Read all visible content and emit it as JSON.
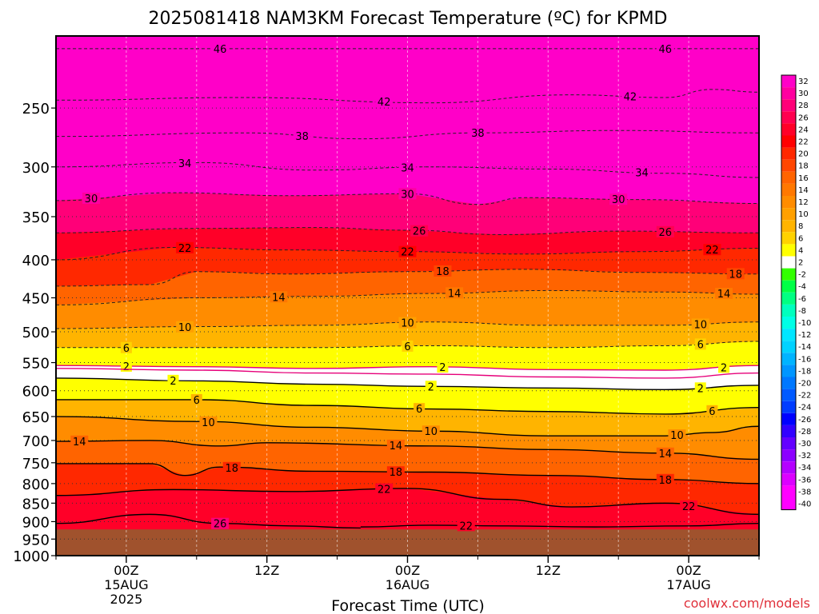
{
  "chart_data": {
    "type": "heatmap",
    "title": "2025081418 NAM3KM Forecast Temperature (ºC) for KPMD",
    "xlabel": "Forecast Time (UTC)",
    "ylabel": "",
    "credit": "coolwx.com/models",
    "y_scale": "log",
    "y_reversed": true,
    "ylim": [
      1000,
      200
    ],
    "y_ticks": [
      250,
      300,
      350,
      400,
      450,
      500,
      550,
      600,
      650,
      700,
      750,
      800,
      850,
      900,
      950,
      1000
    ],
    "x_ticks": [
      {
        "hour": 0,
        "lines": [
          "00Z",
          "15AUG",
          "2025"
        ]
      },
      {
        "hour": 12,
        "lines": [
          "12Z"
        ]
      },
      {
        "hour": 24,
        "lines": [
          "00Z",
          "16AUG"
        ]
      },
      {
        "hour": 36,
        "lines": [
          "12Z"
        ]
      },
      {
        "hour": 48,
        "lines": [
          "00Z",
          "17AUG"
        ]
      }
    ],
    "xlim": [
      -6,
      54
    ],
    "grid": true,
    "surface_pressure": 922,
    "surface_color": "#a0522d",
    "colorbar": {
      "levels": [
        32,
        30,
        28,
        26,
        24,
        22,
        20,
        18,
        16,
        14,
        12,
        10,
        8,
        6,
        4,
        2,
        -2,
        -4,
        -6,
        -8,
        -10,
        -12,
        -14,
        -16,
        -18,
        -20,
        -22,
        -24,
        -26,
        -28,
        -30,
        -32,
        -34,
        -36,
        -38,
        -40
      ],
      "colors": [
        "#ff00c8",
        "#ff00a0",
        "#ff0078",
        "#ff0050",
        "#ff0028",
        "#ff0000",
        "#ff2800",
        "#ff4600",
        "#ff6400",
        "#ff7800",
        "#ff8c00",
        "#ffa000",
        "#ffb400",
        "#ffd200",
        "#ffff00",
        "#ffffff",
        "#32ff00",
        "#00ff46",
        "#00ff82",
        "#00ffbe",
        "#00ffe6",
        "#00e6ff",
        "#00d2ff",
        "#00b4ff",
        "#0096ff",
        "#0078ff",
        "#005aff",
        "#003cff",
        "#0000ff",
        "#3200ff",
        "#6400ff",
        "#8c00ff",
        "#b400ff",
        "#dc00ff",
        "#ff00ff",
        "#ff00ff"
      ]
    },
    "contours": [
      {
        "value": 46,
        "style": "dashed",
        "color": "#222222",
        "label_hours": [
          8,
          46
        ],
        "p": [
          [
            -6,
            208
          ],
          [
            10,
            208
          ],
          [
            30,
            208
          ],
          [
            54,
            208
          ]
        ]
      },
      {
        "value": 42,
        "style": "dashed",
        "color": "#222222",
        "label_hours": [
          22,
          43
        ],
        "p": [
          [
            -6,
            244
          ],
          [
            10,
            242
          ],
          [
            26,
            246
          ],
          [
            38,
            240
          ],
          [
            46,
            242
          ],
          [
            50,
            236
          ],
          [
            54,
            238
          ]
        ]
      },
      {
        "value": 38,
        "style": "dashed",
        "color": "#222222",
        "label_hours": [
          15,
          30
        ],
        "p": [
          [
            -6,
            273
          ],
          [
            10,
            270
          ],
          [
            20,
            275
          ],
          [
            30,
            270
          ],
          [
            42,
            268
          ],
          [
            54,
            270
          ]
        ]
      },
      {
        "value": 34,
        "style": "dashed",
        "color": "#222222",
        "label_hours": [
          5,
          24,
          44
        ],
        "p": [
          [
            -6,
            300
          ],
          [
            6,
            296
          ],
          [
            16,
            303
          ],
          [
            26,
            300
          ],
          [
            36,
            302
          ],
          [
            46,
            306
          ],
          [
            54,
            310
          ]
        ]
      },
      {
        "value": 30,
        "style": "dashed",
        "color": "#222222",
        "label_hours": [
          -3,
          24,
          42
        ],
        "p": [
          [
            -6,
            333
          ],
          [
            4,
            325
          ],
          [
            14,
            328
          ],
          [
            24,
            326
          ],
          [
            30,
            337
          ],
          [
            34,
            330
          ],
          [
            44,
            332
          ],
          [
            54,
            336
          ]
        ]
      },
      {
        "value": 26,
        "style": "dashed",
        "color": "#222222",
        "label_hours": [
          25,
          46
        ],
        "p": [
          [
            -6,
            368
          ],
          [
            6,
            363
          ],
          [
            16,
            362
          ],
          [
            24,
            365
          ],
          [
            32,
            370
          ],
          [
            42,
            366
          ],
          [
            54,
            368
          ]
        ]
      },
      {
        "value": 22,
        "style": "dashed",
        "color": "#222222",
        "label_hours": [
          5,
          24,
          50
        ],
        "p": [
          [
            -6,
            400
          ],
          [
            4,
            385
          ],
          [
            14,
            388
          ],
          [
            24,
            390
          ],
          [
            34,
            393
          ],
          [
            44,
            390
          ],
          [
            54,
            386
          ]
        ]
      },
      {
        "value": 18,
        "style": "dashed",
        "color": "#222222",
        "label_hours": [
          27,
          52
        ],
        "p": [
          [
            -6,
            434
          ],
          [
            2,
            432
          ],
          [
            6,
            415
          ],
          [
            14,
            418
          ],
          [
            24,
            415
          ],
          [
            34,
            412
          ],
          [
            44,
            416
          ],
          [
            54,
            418
          ]
        ]
      },
      {
        "value": 14,
        "style": "dashed",
        "color": "#222222",
        "label_hours": [
          13,
          28,
          51
        ],
        "p": [
          [
            -6,
            460
          ],
          [
            6,
            450
          ],
          [
            16,
            448
          ],
          [
            26,
            444
          ],
          [
            36,
            440
          ],
          [
            46,
            442
          ],
          [
            54,
            445
          ]
        ]
      },
      {
        "value": 10,
        "style": "dashed",
        "color": "#222222",
        "label_hours": [
          5,
          24,
          49
        ],
        "p": [
          [
            -6,
            495
          ],
          [
            6,
            492
          ],
          [
            16,
            490
          ],
          [
            26,
            485
          ],
          [
            36,
            490
          ],
          [
            46,
            490
          ],
          [
            54,
            485
          ]
        ]
      },
      {
        "value": 6,
        "style": "dashed",
        "color": "#222222",
        "label_hours": [
          0,
          24,
          49
        ],
        "p": [
          [
            -6,
            525
          ],
          [
            6,
            525
          ],
          [
            16,
            525
          ],
          [
            26,
            522
          ],
          [
            36,
            525
          ],
          [
            46,
            522
          ],
          [
            54,
            515
          ]
        ]
      },
      {
        "value": 2,
        "style": "solid",
        "color": "#e6007a",
        "label_hours": [
          0,
          27,
          51
        ],
        "p": [
          [
            -6,
            555
          ],
          [
            6,
            557
          ],
          [
            16,
            560
          ],
          [
            26,
            557
          ],
          [
            36,
            562
          ],
          [
            46,
            563
          ],
          [
            54,
            555
          ]
        ]
      },
      {
        "value": -2,
        "style": "solid",
        "color": "#e6007a",
        "label_hours": [],
        "p": [
          [
            -6,
            560
          ],
          [
            6,
            563
          ],
          [
            16,
            568
          ],
          [
            26,
            570
          ],
          [
            36,
            575
          ],
          [
            46,
            577
          ],
          [
            54,
            568
          ]
        ]
      },
      {
        "value": 2,
        "style": "solid",
        "color": "#000000",
        "label_hours": [
          4,
          26,
          49
        ],
        "p": [
          [
            -6,
            577
          ],
          [
            6,
            582
          ],
          [
            16,
            588
          ],
          [
            26,
            592
          ],
          [
            36,
            595
          ],
          [
            46,
            598
          ],
          [
            54,
            590
          ]
        ]
      },
      {
        "value": 6,
        "style": "solid",
        "color": "#000000",
        "label_hours": [
          6,
          25,
          50
        ],
        "p": [
          [
            -6,
            617
          ],
          [
            6,
            617
          ],
          [
            16,
            628
          ],
          [
            26,
            635
          ],
          [
            36,
            640
          ],
          [
            46,
            645
          ],
          [
            54,
            632
          ]
        ]
      },
      {
        "value": 10,
        "style": "solid",
        "color": "#000000",
        "label_hours": [
          7,
          26,
          47
        ],
        "p": [
          [
            -6,
            650
          ],
          [
            6,
            660
          ],
          [
            16,
            672
          ],
          [
            26,
            680
          ],
          [
            36,
            690
          ],
          [
            46,
            690
          ],
          [
            50,
            683
          ],
          [
            54,
            670
          ]
        ]
      },
      {
        "value": 14,
        "style": "solid",
        "color": "#000000",
        "label_hours": [
          -4,
          23,
          46
        ],
        "p": [
          [
            -6,
            702
          ],
          [
            2,
            700
          ],
          [
            8,
            712
          ],
          [
            12,
            705
          ],
          [
            26,
            712
          ],
          [
            36,
            720
          ],
          [
            46,
            728
          ],
          [
            54,
            742
          ]
        ]
      },
      {
        "value": 18,
        "style": "solid",
        "color": "#000000",
        "label_hours": [
          9,
          23,
          46
        ],
        "p": [
          [
            -6,
            752
          ],
          [
            2,
            752
          ],
          [
            5,
            780
          ],
          [
            8,
            760
          ],
          [
            16,
            770
          ],
          [
            26,
            772
          ],
          [
            36,
            780
          ],
          [
            46,
            790
          ],
          [
            54,
            800
          ]
        ]
      },
      {
        "value": 22,
        "style": "solid",
        "color": "#000000",
        "label_hours": [
          22,
          48
        ],
        "p": [
          [
            -6,
            830
          ],
          [
            4,
            815
          ],
          [
            14,
            820
          ],
          [
            24,
            812
          ],
          [
            32,
            840
          ],
          [
            38,
            860
          ],
          [
            46,
            850
          ],
          [
            54,
            880
          ]
        ]
      },
      {
        "value": 26,
        "style": "solid",
        "color": "#000000",
        "label_hours": [
          8
        ],
        "p": [
          [
            -6,
            905
          ],
          [
            2,
            880
          ],
          [
            8,
            905
          ],
          [
            14,
            912
          ],
          [
            20,
            918
          ]
        ]
      },
      {
        "value": 22,
        "style": "solid",
        "color": "#000000",
        "label_hours": [
          29
        ],
        "p": [
          [
            20,
            915
          ],
          [
            26,
            910
          ],
          [
            32,
            912
          ],
          [
            40,
            915
          ],
          [
            48,
            912
          ],
          [
            54,
            905
          ]
        ]
      }
    ]
  }
}
